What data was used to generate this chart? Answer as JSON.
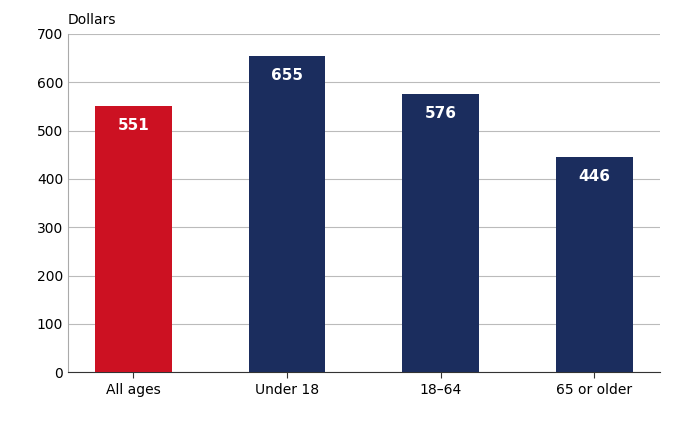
{
  "categories": [
    "All ages",
    "Under 18",
    "18–64",
    "65 or older"
  ],
  "values": [
    551,
    655,
    576,
    446
  ],
  "bar_colors": [
    "#cc1122",
    "#1b2d5e",
    "#1b2d5e",
    "#1b2d5e"
  ],
  "ylabel": "Dollars",
  "ylim": [
    0,
    700
  ],
  "yticks": [
    0,
    100,
    200,
    300,
    400,
    500,
    600,
    700
  ],
  "label_color": "#ffffff",
  "label_fontsize": 11,
  "tick_fontsize": 10,
  "ylabel_fontsize": 10,
  "background_color": "#ffffff",
  "grid_color": "#bbbbbb",
  "bar_width": 0.5
}
